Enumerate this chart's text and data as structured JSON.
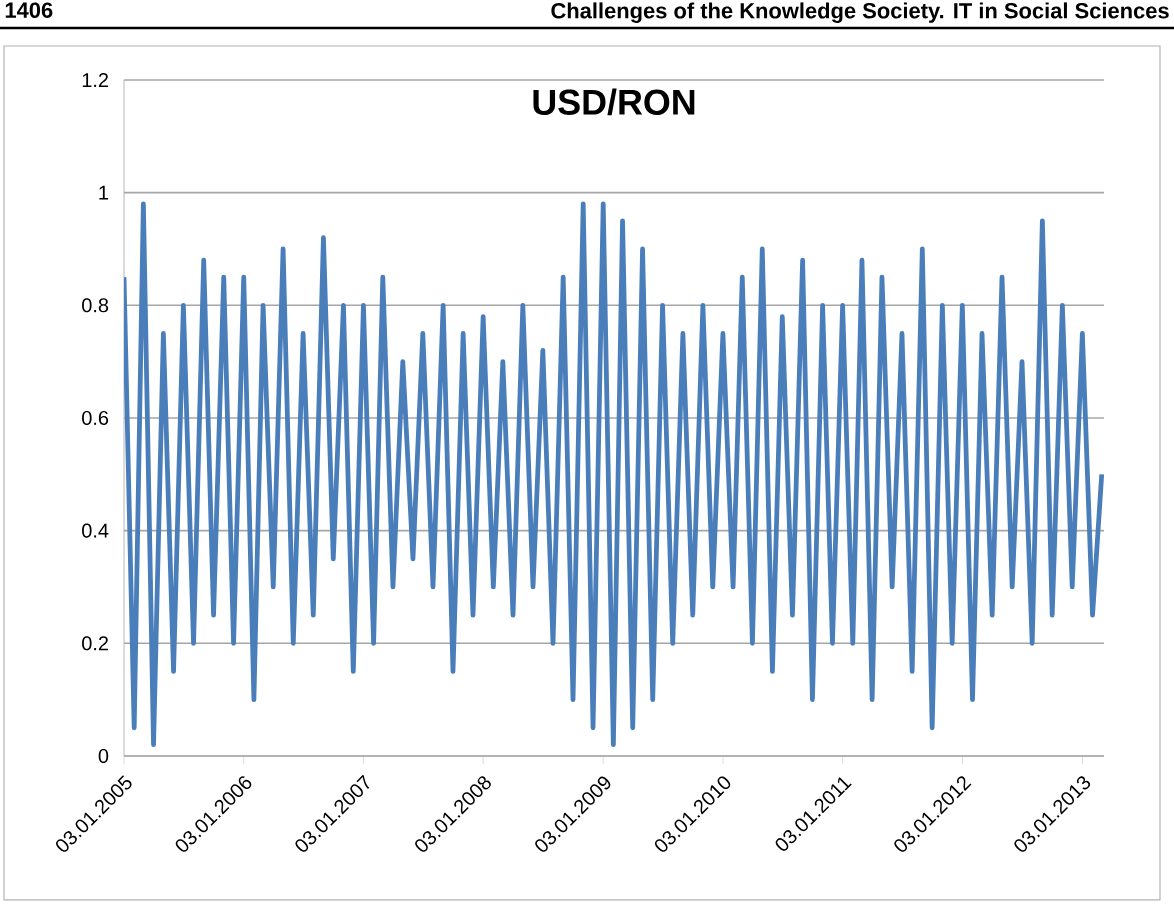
{
  "chart_data": {
    "type": "line",
    "title": "USD/RON",
    "annotations": [
      "1406",
      "Challenges of the Knowledge Society. IT in Social Sciences"
    ],
    "x": [
      "2005-01-03",
      "2005-02-03",
      "2005-03-03",
      "2005-04-03",
      "2005-05-03",
      "2005-06-03",
      "2005-07-03",
      "2005-08-03",
      "2005-09-03",
      "2005-10-03",
      "2005-11-03",
      "2005-12-03",
      "2006-01-03",
      "2006-02-03",
      "2006-03-03",
      "2006-04-03",
      "2006-05-03",
      "2006-06-03",
      "2006-07-03",
      "2006-08-03",
      "2006-09-03",
      "2006-10-03",
      "2006-11-03",
      "2006-12-03",
      "2007-01-03",
      "2007-02-03",
      "2007-03-03",
      "2007-04-03",
      "2007-05-03",
      "2007-06-03",
      "2007-07-03",
      "2007-08-03",
      "2007-09-03",
      "2007-10-03",
      "2007-11-03",
      "2007-12-03",
      "2008-01-03",
      "2008-02-03",
      "2008-03-03",
      "2008-04-03",
      "2008-05-03",
      "2008-06-03",
      "2008-07-03",
      "2008-08-03",
      "2008-09-03",
      "2008-10-03",
      "2008-11-03",
      "2008-12-03",
      "2009-01-03",
      "2009-02-03",
      "2009-03-03",
      "2009-04-03",
      "2009-05-03",
      "2009-06-03",
      "2009-07-03",
      "2009-08-03",
      "2009-09-03",
      "2009-10-03",
      "2009-11-03",
      "2009-12-03",
      "2010-01-03",
      "2010-02-03",
      "2010-03-03",
      "2010-04-03",
      "2010-05-03",
      "2010-06-03",
      "2010-07-03",
      "2010-08-03",
      "2010-09-03",
      "2010-10-03",
      "2010-11-03",
      "2010-12-03",
      "2011-01-03",
      "2011-02-03",
      "2011-03-03",
      "2011-04-03",
      "2011-05-03",
      "2011-06-03",
      "2011-07-03",
      "2011-08-03",
      "2011-09-03",
      "2011-10-03",
      "2011-11-03",
      "2011-12-03",
      "2012-01-03",
      "2012-02-03",
      "2012-03-03",
      "2012-04-03",
      "2012-05-03",
      "2012-06-03",
      "2012-07-03",
      "2012-08-03",
      "2012-09-03",
      "2012-10-03",
      "2012-11-03",
      "2012-12-03",
      "2013-01-03",
      "2013-02-03",
      "2013-03-03"
    ],
    "series": [
      {
        "color": "#4a7ebb",
        "values": [
          0.85,
          0.05,
          0.98,
          0.02,
          0.75,
          0.15,
          0.8,
          0.2,
          0.88,
          0.25,
          0.85,
          0.2,
          0.85,
          0.1,
          0.8,
          0.3,
          0.9,
          0.2,
          0.75,
          0.25,
          0.92,
          0.35,
          0.8,
          0.15,
          0.8,
          0.2,
          0.85,
          0.3,
          0.7,
          0.35,
          0.75,
          0.3,
          0.8,
          0.15,
          0.75,
          0.25,
          0.78,
          0.3,
          0.7,
          0.25,
          0.8,
          0.3,
          0.72,
          0.2,
          0.85,
          0.1,
          0.98,
          0.05,
          0.98,
          0.02,
          0.95,
          0.05,
          0.9,
          0.1,
          0.8,
          0.2,
          0.75,
          0.25,
          0.8,
          0.3,
          0.75,
          0.3,
          0.85,
          0.2,
          0.9,
          0.15,
          0.78,
          0.25,
          0.88,
          0.1,
          0.8,
          0.2,
          0.8,
          0.2,
          0.88,
          0.1,
          0.85,
          0.3,
          0.75,
          0.15,
          0.9,
          0.05,
          0.8,
          0.2,
          0.8,
          0.1,
          0.75,
          0.25,
          0.85,
          0.3,
          0.7,
          0.2,
          0.95,
          0.25,
          0.8,
          0.3,
          0.75,
          0.25,
          0.5
        ]
      }
    ],
    "xlim": [
      "2005-01-03",
      "2013-03-10"
    ],
    "xticks": [
      {
        "value": "2005-01-03",
        "label": "03.01.2005"
      },
      {
        "value": "2006-01-03",
        "label": "03.01.2006"
      },
      {
        "value": "2007-01-03",
        "label": "03.01.2007"
      },
      {
        "value": "2008-01-03",
        "label": "03.01.2008"
      },
      {
        "value": "2009-01-03",
        "label": "03.01.2009"
      },
      {
        "value": "2010-01-03",
        "label": "03.01.2010"
      },
      {
        "value": "2011-01-03",
        "label": "03.01.2011"
      },
      {
        "value": "2012-01-03",
        "label": "03.01.2012"
      },
      {
        "value": "2013-01-03",
        "label": "03.01.2013"
      }
    ],
    "ylim": [
      0,
      1.2
    ],
    "yticks": [
      0,
      0.2,
      0.4,
      0.6,
      0.8,
      1,
      1.2
    ],
    "grid": "y"
  }
}
